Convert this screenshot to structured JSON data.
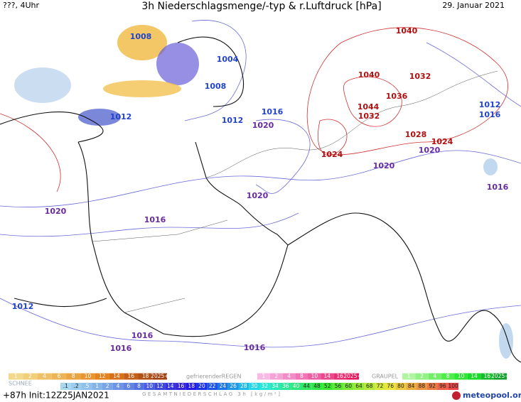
{
  "header": {
    "left": "???, 4Uhr",
    "title": "3h Niederschlagsmenge/-typ & r.Luftdruck [hPa]",
    "date": "29. Januar 2021"
  },
  "isobars": [
    "1008",
    "1004",
    "1008",
    "1012",
    "1012",
    "1016",
    "1020",
    "1020",
    "1020",
    "1020",
    "1016",
    "1012",
    "1016",
    "1016",
    "1016",
    "1012",
    "1016",
    "1016",
    "1020",
    "1040",
    "1040",
    "1032",
    "1036",
    "1044",
    "1032",
    "1028",
    "1024",
    "1024"
  ],
  "legend": {
    "rain": {
      "scale": [
        "1",
        "2",
        "4",
        "6",
        "8",
        "10",
        "12",
        "14",
        "16",
        "18",
        "2025+"
      ]
    },
    "freezing_rain": {
      "name": "gefrierenderREGEN",
      "scale": [
        "1",
        "2",
        "4",
        "8",
        "10",
        "14",
        "16",
        "2025+"
      ]
    },
    "graupel": {
      "name": "GRAUPEL",
      "scale": [
        "1",
        "2",
        "4",
        "8",
        "10",
        "14",
        "16",
        "2025+"
      ]
    },
    "snow": {
      "name": "SCHNEE"
    },
    "total": {
      "scale": [
        ".1",
        ".2",
        ".5",
        "1",
        "2",
        "4",
        "6",
        "8",
        "10",
        "12",
        "14",
        "16",
        "18",
        "20",
        "22",
        "24",
        "26",
        "28",
        "30",
        "32",
        "34",
        "36",
        "40",
        "44",
        "48",
        "52",
        "56",
        "60",
        "64",
        "68",
        "72",
        "76",
        "80",
        "84",
        "88",
        "92",
        "96",
        "100"
      ],
      "name": "GESAMTNIEDERSCHLAG 3h [kg/m²]"
    }
  },
  "footer": {
    "init": "+87h Init:12Z25JAN2021",
    "brand": "meteopool.org"
  }
}
